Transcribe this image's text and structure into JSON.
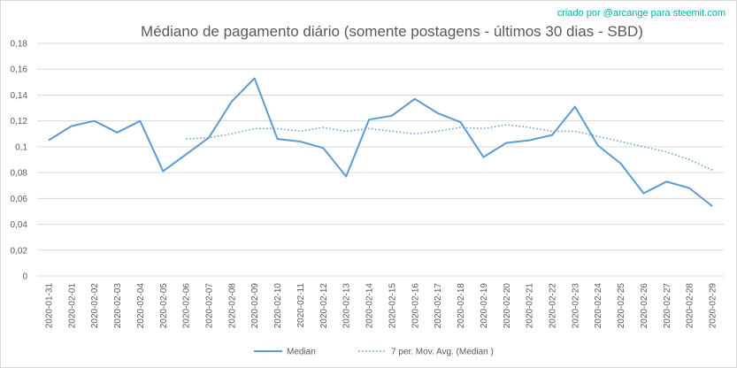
{
  "credit": "criado por @arcange para steemit.com",
  "chart_data": {
    "type": "line",
    "title": "Médiano de pagamento diário (somente postagens - últimos 30 dias - SBD)",
    "xlabel": "",
    "ylabel": "",
    "ylim": [
      0,
      0.18
    ],
    "yticks": [
      0,
      0.02,
      0.04,
      0.06,
      0.08,
      0.1,
      0.12,
      0.14,
      0.16,
      0.18
    ],
    "ytick_labels": [
      "0",
      "0,02",
      "0,04",
      "0,06",
      "0,08",
      "0,1",
      "0,12",
      "0,14",
      "0,16",
      "0,18"
    ],
    "grid": true,
    "legend_position": "bottom",
    "categories": [
      "2020-01-31",
      "2020-02-01",
      "2020-02-02",
      "2020-02-03",
      "2020-02-04",
      "2020-02-05",
      "2020-02-06",
      "2020-02-07",
      "2020-02-08",
      "2020-02-09",
      "2020-02-10",
      "2020-02-11",
      "2020-02-12",
      "2020-02-13",
      "2020-02-14",
      "2020-02-15",
      "2020-02-16",
      "2020-02-17",
      "2020-02-18",
      "2020-02-19",
      "2020-02-20",
      "2020-02-21",
      "2020-02-22",
      "2020-02-23",
      "2020-02-24",
      "2020-02-25",
      "2020-02-26",
      "2020-02-27",
      "2020-02-28",
      "2020-02-29"
    ],
    "series": [
      {
        "name": "Median",
        "style": "solid",
        "color": "#5b9bd5",
        "values": [
          0.105,
          0.116,
          0.12,
          0.111,
          0.12,
          0.081,
          0.094,
          0.107,
          0.135,
          0.153,
          0.106,
          0.104,
          0.099,
          0.077,
          0.121,
          0.124,
          0.137,
          0.126,
          0.119,
          0.092,
          0.103,
          0.105,
          0.109,
          0.131,
          0.101,
          0.087,
          0.064,
          0.073,
          0.068,
          0.054
        ]
      },
      {
        "name": "7 per. Mov. Avg. (Median )",
        "style": "dotted",
        "color": "#5b9bd5",
        "values": [
          null,
          null,
          null,
          null,
          null,
          null,
          0.106,
          0.107,
          0.11,
          0.114,
          0.114,
          0.112,
          0.115,
          0.112,
          0.114,
          0.112,
          0.11,
          0.112,
          0.115,
          0.114,
          0.117,
          0.115,
          0.112,
          0.112,
          0.108,
          0.104,
          0.1,
          0.096,
          0.09,
          0.082
        ]
      }
    ]
  }
}
